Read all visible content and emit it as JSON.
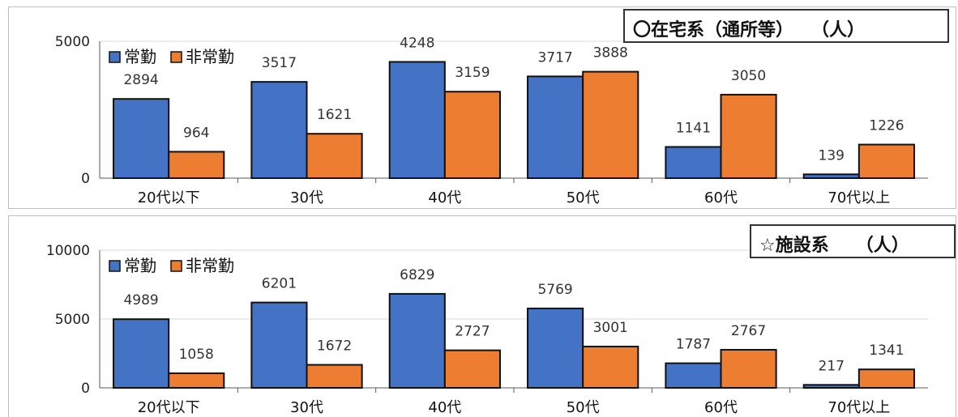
{
  "colors": {
    "regular": "#4472c4",
    "nonregular": "#ed7d31",
    "grid": "#d9d9d9",
    "axis": "#595959"
  },
  "chart_data": [
    {
      "type": "bar",
      "title": "〇在宅系（通所等）　　（人）",
      "categories": [
        "20代以下",
        "30代",
        "40代",
        "50代",
        "60代",
        "70代以上"
      ],
      "series": [
        {
          "name": "常勤",
          "values": [
            2894,
            3517,
            4248,
            3717,
            1141,
            139
          ]
        },
        {
          "name": "非常勤",
          "values": [
            964,
            1621,
            3159,
            3888,
            3050,
            1226
          ]
        }
      ],
      "ylim": [
        0,
        5000
      ],
      "yticks": [
        0,
        5000
      ],
      "xlabel": "",
      "ylabel": "",
      "grid": true,
      "legend": "top-left"
    },
    {
      "type": "bar",
      "title": "☆施設系　　（人）",
      "categories": [
        "20代以下",
        "30代",
        "40代",
        "50代",
        "60代",
        "70代以上"
      ],
      "series": [
        {
          "name": "常勤",
          "values": [
            4989,
            6201,
            6829,
            5769,
            1787,
            217
          ]
        },
        {
          "name": "非常勤",
          "values": [
            1058,
            1672,
            2727,
            3001,
            2767,
            1341
          ]
        }
      ],
      "ylim": [
        0,
        10000
      ],
      "yticks": [
        0,
        5000,
        10000
      ],
      "xlabel": "",
      "ylabel": "",
      "grid": true,
      "legend": "top-left"
    }
  ]
}
